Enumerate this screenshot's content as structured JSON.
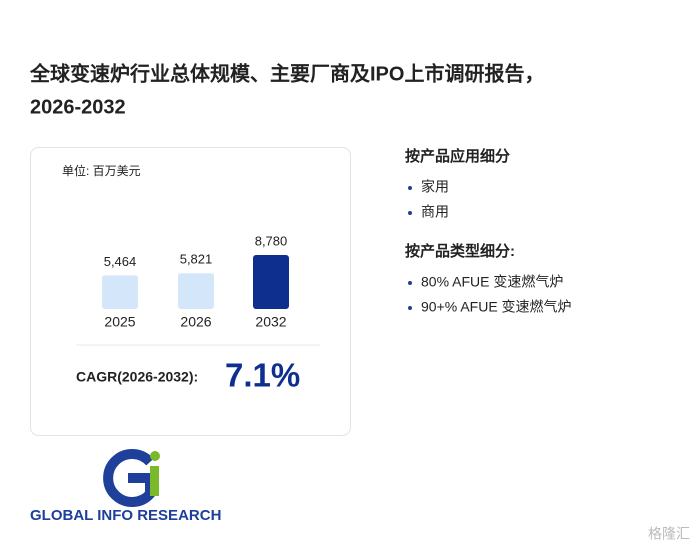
{
  "header": {
    "title_line1": "全球变速炉行业总体规模、主要厂商及IPO上市调研报告，",
    "title_line2": "2026-2032"
  },
  "chart_data": {
    "type": "bar",
    "unit_label": "单位: 百万美元",
    "categories": [
      "2025",
      "2026",
      "2032"
    ],
    "values": [
      5464,
      5821,
      8780
    ],
    "value_labels": [
      "5,464",
      "5,821",
      "8,780"
    ],
    "colors": [
      "#d3e6fa",
      "#d3e6fa",
      "#0e2f8e"
    ]
  },
  "cagr": {
    "label": "CAGR(2026-2032):",
    "value": "7.1%"
  },
  "segments": [
    {
      "heading": "按产品应用细分",
      "items": [
        "家用",
        "商用"
      ]
    },
    {
      "heading": "按产品类型细分:",
      "items": [
        "80% AFUE 变速燃气炉",
        "90+% AFUE 变速燃气炉"
      ]
    }
  ],
  "logo": {
    "text": "GLOBAL INFO RESEARCH"
  },
  "watermark": {
    "text": "格隆汇"
  }
}
